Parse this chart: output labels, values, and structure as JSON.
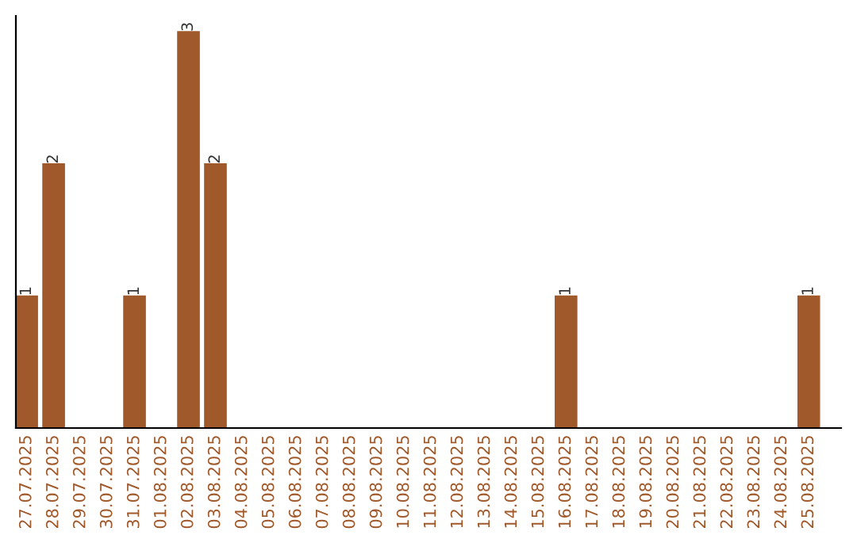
{
  "chart_data": {
    "type": "bar",
    "categories": [
      "27.07.2025",
      "28.07.2025",
      "29.07.2025",
      "30.07.2025",
      "31.07.2025",
      "01.08.2025",
      "02.08.2025",
      "03.08.2025",
      "04.08.2025",
      "05.08.2025",
      "06.08.2025",
      "07.08.2025",
      "08.08.2025",
      "09.08.2025",
      "10.08.2025",
      "11.08.2025",
      "12.08.2025",
      "13.08.2025",
      "14.08.2025",
      "15.08.2025",
      "16.08.2025",
      "17.08.2025",
      "18.08.2025",
      "19.08.2025",
      "20.08.2025",
      "21.08.2025",
      "22.08.2025",
      "23.08.2025",
      "24.08.2025",
      "25.08.2025"
    ],
    "values": [
      1,
      2,
      0,
      0,
      1,
      0,
      3,
      2,
      0,
      0,
      0,
      0,
      0,
      0,
      0,
      0,
      0,
      0,
      0,
      0,
      1,
      0,
      0,
      0,
      0,
      0,
      0,
      0,
      0,
      1
    ],
    "value_labels": [
      "1",
      "2",
      null,
      null,
      "1",
      null,
      "3",
      "2",
      null,
      null,
      null,
      null,
      null,
      null,
      null,
      null,
      null,
      null,
      null,
      null,
      "1",
      null,
      null,
      null,
      null,
      null,
      null,
      null,
      null,
      "1"
    ],
    "color": "#a0592b",
    "tick_labels": "x",
    "grid": false,
    "legend": false
  }
}
